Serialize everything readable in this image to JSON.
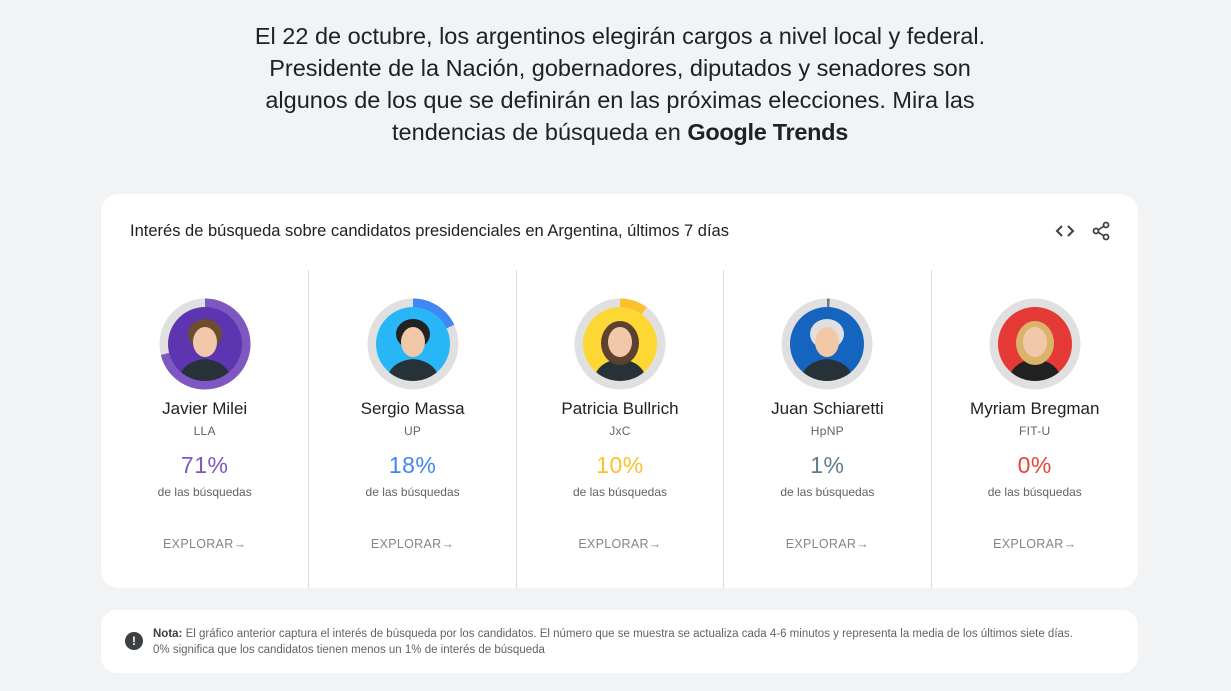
{
  "intro": {
    "text": "El 22 de octubre, los argentinos elegirán cargos a nivel local y federal. Presidente de la Nación, gobernadores, diputados y senadores son algunos de los que se definirán en las próximas elecciones. Mira las tendencias de búsqueda en ",
    "brand": "Google Trends"
  },
  "card": {
    "title": "Interés de búsqueda sobre candidatos presidenciales en Argentina, últimos 7 días",
    "embed_icon": "code-icon",
    "share_icon": "share-icon"
  },
  "candidates": [
    {
      "name": "Javier Milei",
      "party": "LLA",
      "percent": "71%",
      "share": 0.71,
      "label": "de las búsquedas",
      "explore": "EXPLORAR",
      "color": "#7e57c2",
      "bg": "#5e35b1"
    },
    {
      "name": "Sergio Massa",
      "party": "UP",
      "percent": "18%",
      "share": 0.18,
      "label": "de las búsquedas",
      "explore": "EXPLORAR",
      "color": "#4285f4",
      "bg": "#29b6f6"
    },
    {
      "name": "Patricia Bullrich",
      "party": "JxC",
      "percent": "10%",
      "share": 0.1,
      "label": "de las búsquedas",
      "explore": "EXPLORAR",
      "color": "#fbc02d",
      "bg": "#fdd835"
    },
    {
      "name": "Juan Schiaretti",
      "party": "HpNP",
      "percent": "1%",
      "share": 0.01,
      "label": "de las búsquedas",
      "explore": "EXPLORAR",
      "color": "#607d8b",
      "bg": "#1565c0"
    },
    {
      "name": "Myriam Bregman",
      "party": "FIT-U",
      "percent": "0%",
      "share": 0.0,
      "label": "de las búsquedas",
      "explore": "EXPLORAR",
      "color": "#ea4335",
      "bg": "#e53935"
    }
  ],
  "note": {
    "label": "Nota:",
    "text": " El gráfico anterior captura el interés de búsqueda por los candidatos. El número que se muestra se actualiza cada 4-6 minutos y representa la media de los últimos siete días. 0% significa que los candidatos tienen menos un 1% de interés de búsqueda"
  }
}
